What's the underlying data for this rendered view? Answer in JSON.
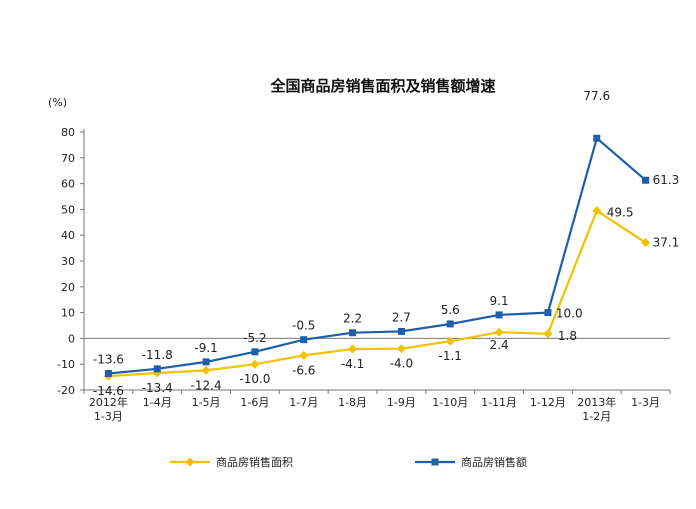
{
  "chart_data": {
    "type": "line",
    "title": "全国商品房销售面积及销售额增速",
    "ylabel": "(%)",
    "xlabel": "",
    "ylim": [
      -20,
      80
    ],
    "yticks": [
      "80",
      "70",
      "60",
      "50",
      "40",
      "30",
      "20",
      "10",
      "0",
      "-10",
      "-20"
    ],
    "categories": [
      [
        "2012年",
        "1-3月"
      ],
      [
        "1-4月"
      ],
      [
        "1-5月"
      ],
      [
        "1-6月"
      ],
      [
        "1-7月"
      ],
      [
        "1-8月"
      ],
      [
        "1-9月"
      ],
      [
        "1-10月"
      ],
      [
        "1-11月"
      ],
      [
        "1-12月"
      ],
      [
        "2013年",
        "1-2月"
      ],
      [
        "1-3月"
      ]
    ],
    "grid": false,
    "legend_position": "bottom",
    "series": [
      {
        "name": "商品房销售面积",
        "color": "#f2c200",
        "marker": "diamond",
        "values": [
          -14.6,
          -13.4,
          -12.4,
          -10.0,
          -6.6,
          -4.1,
          -4.0,
          -1.1,
          2.4,
          1.8,
          49.5,
          37.1
        ],
        "labels": [
          "-14.6",
          "-13.4",
          "-12.4",
          "-10.0",
          "-6.6",
          "-4.1",
          "-4.0",
          "-1.1",
          "2.4",
          "1.8",
          "49.5",
          "37.1"
        ]
      },
      {
        "name": "商品房销售额",
        "color": "#1f5fa8",
        "marker": "square",
        "values": [
          -13.6,
          -11.8,
          -9.1,
          -5.2,
          -0.5,
          2.2,
          2.7,
          5.6,
          9.1,
          10.0,
          77.6,
          61.3
        ],
        "labels": [
          "-13.6",
          "-11.8",
          "-9.1",
          "-5.2",
          "-0.5",
          "2.2",
          "2.7",
          "5.6",
          "9.1",
          "10.0",
          "77.6",
          "61.3"
        ]
      }
    ]
  }
}
